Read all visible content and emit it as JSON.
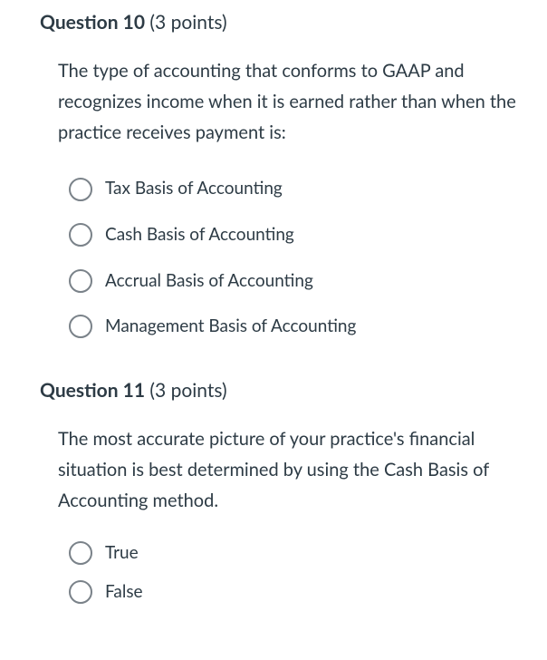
{
  "questions": [
    {
      "number_label": "Question 10",
      "points_label": "(3 points)",
      "text": "The type of accounting that conforms to GAAP and recognizes income when it is earned rather than when the practice receives payment is:",
      "options": [
        "Tax Basis of Accounting",
        "Cash Basis of Accounting",
        "Accrual Basis of Accounting",
        "Management Basis of Accounting"
      ]
    },
    {
      "number_label": "Question 11",
      "points_label": "(3 points)",
      "text": "The most accurate picture of your practice's financial situation is best determined by using the Cash Basis of Accounting method.",
      "options": [
        "True",
        "False"
      ]
    }
  ],
  "colors": {
    "text": "#2d3b45",
    "radio_border": "#7a8289",
    "background": "#ffffff"
  }
}
